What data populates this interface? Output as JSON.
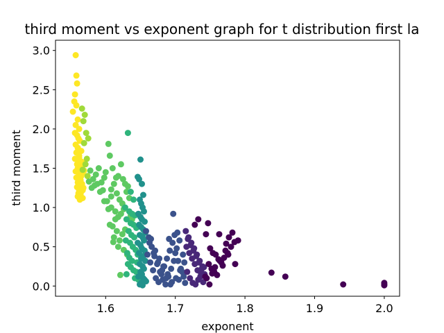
{
  "chart_data": {
    "type": "scatter",
    "title": "third moment vs exponent graph for t distribution first la",
    "xlabel": "exponent",
    "ylabel": "third moment",
    "xlim": [
      1.528,
      2.022
    ],
    "ylim": [
      -0.13,
      3.13
    ],
    "xticks": [
      1.6,
      1.7,
      1.8,
      1.9,
      2.0
    ],
    "xtick_labels": [
      "1.6",
      "1.7",
      "1.8",
      "1.9",
      "2.0"
    ],
    "yticks": [
      0.0,
      0.5,
      1.0,
      1.5,
      2.0,
      2.5,
      3.0
    ],
    "ytick_labels": [
      "0.0",
      "0.5",
      "1.0",
      "1.5",
      "2.0",
      "2.5",
      "3.0"
    ],
    "grid": false,
    "colormap": "viridis",
    "color_encoding": "points colored by viridis colormap: yellow at low exponent, dark purple at high exponent",
    "colors": {
      "yellow": "#fde725",
      "green": "#5ec962",
      "teal": "#21918c",
      "blue": "#3b528b",
      "purple": "#440154"
    },
    "series": [
      {
        "color": "#fde725",
        "x": [
          1.557,
          1.558,
          1.559,
          1.556,
          1.553,
          1.555,
          1.558,
          1.56,
          1.557,
          1.562,
          1.556,
          1.559,
          1.561,
          1.563,
          1.557,
          1.56,
          1.565,
          1.558,
          1.562,
          1.556,
          1.561,
          1.564,
          1.559,
          1.566,
          1.56,
          1.563,
          1.557,
          1.567,
          1.562,
          1.565,
          1.558,
          1.561,
          1.564,
          1.56,
          1.566,
          1.563,
          1.559,
          1.568,
          1.562,
          1.565,
          1.561,
          1.564,
          1.56,
          1.567,
          1.563,
          1.569,
          1.566,
          1.562,
          1.564,
          1.567
        ],
        "y": [
          2.94,
          2.68,
          2.58,
          2.44,
          2.22,
          2.35,
          2.3,
          2.12,
          2.05,
          2.0,
          1.95,
          1.92,
          1.88,
          1.85,
          1.8,
          1.76,
          1.72,
          1.7,
          1.66,
          1.62,
          1.6,
          1.57,
          1.55,
          1.52,
          1.5,
          1.48,
          1.46,
          1.44,
          1.42,
          1.4,
          1.38,
          1.36,
          1.34,
          1.32,
          1.3,
          1.28,
          1.26,
          1.25,
          1.22,
          1.2,
          1.18,
          1.16,
          1.14,
          1.12,
          1.1,
          1.47,
          1.58,
          1.63,
          1.35,
          1.22
        ]
      },
      {
        "color": "#a0da39",
        "x": [
          1.566,
          1.57,
          1.568,
          1.572,
          1.575,
          1.569,
          1.573,
          1.571,
          1.567,
          1.574
        ],
        "y": [
          2.26,
          2.18,
          2.1,
          1.95,
          1.88,
          1.82,
          1.62,
          1.55,
          1.48,
          1.4
        ]
      },
      {
        "color": "#5ec962",
        "x": [
          1.578,
          1.582,
          1.586,
          1.59,
          1.594,
          1.598,
          1.604,
          1.606,
          1.61,
          1.618,
          1.622,
          1.625,
          1.628,
          1.632,
          1.58,
          1.588,
          1.596,
          1.6,
          1.612,
          1.616,
          1.62,
          1.624,
          1.63,
          1.634,
          1.584,
          1.592,
          1.602,
          1.608,
          1.614,
          1.626,
          1.636,
          1.638,
          1.576,
          1.598,
          1.608,
          1.618,
          1.606,
          1.614,
          1.622,
          1.61,
          1.616,
          1.624,
          1.612,
          1.62,
          1.628,
          1.604,
          1.611,
          1.618,
          1.626,
          1.631,
          1.621,
          1.608,
          1.615
        ],
        "y": [
          1.47,
          1.36,
          1.42,
          1.5,
          1.32,
          1.38,
          1.81,
          1.66,
          1.5,
          1.4,
          1.55,
          1.36,
          1.3,
          1.27,
          1.25,
          1.3,
          1.22,
          1.45,
          1.3,
          1.18,
          1.1,
          1.05,
          1.2,
          1.12,
          1.28,
          1.2,
          1.08,
          1.0,
          0.95,
          0.98,
          0.9,
          0.85,
          1.33,
          1.08,
          1.14,
          0.88,
          0.78,
          0.85,
          0.92,
          0.76,
          0.7,
          0.66,
          0.62,
          0.58,
          0.72,
          0.98,
          0.56,
          0.5,
          0.46,
          0.4,
          0.14,
          1.23,
          1.38
        ]
      },
      {
        "color": "#2fb47c",
        "x": [
          1.632,
          1.636,
          1.64,
          1.628,
          1.634,
          1.638,
          1.642,
          1.63,
          1.636,
          1.64,
          1.644,
          1.633,
          1.637,
          1.641,
          1.629,
          1.635,
          1.639,
          1.643,
          1.631,
          1.646,
          1.634,
          1.638,
          1.645,
          1.632,
          1.636,
          1.64,
          1.644,
          1.63,
          1.642,
          1.647
        ],
        "y": [
          1.95,
          1.2,
          1.1,
          1.0,
          0.95,
          0.92,
          0.9,
          0.85,
          0.8,
          0.78,
          0.74,
          0.7,
          0.65,
          0.62,
          0.58,
          0.55,
          0.5,
          0.46,
          0.42,
          0.4,
          0.36,
          0.32,
          0.3,
          0.28,
          0.24,
          0.2,
          0.18,
          0.15,
          0.1,
          0.08
        ]
      },
      {
        "color": "#21918c",
        "x": [
          1.65,
          1.646,
          1.648,
          1.652,
          1.654,
          1.649,
          1.651,
          1.653,
          1.655,
          1.647,
          1.65,
          1.652,
          1.656,
          1.648,
          1.651,
          1.654,
          1.657,
          1.649,
          1.653,
          1.655,
          1.646,
          1.65,
          1.652,
          1.656,
          1.648,
          1.654,
          1.651,
          1.657,
          1.649,
          1.653,
          1.655,
          1.65,
          1.652,
          1.647,
          1.654,
          1.656,
          1.658,
          1.651,
          1.649,
          1.653
        ],
        "y": [
          1.61,
          1.39,
          1.36,
          1.3,
          1.16,
          1.1,
          1.05,
          1.0,
          0.95,
          0.92,
          0.88,
          0.85,
          0.82,
          0.78,
          0.75,
          0.72,
          0.68,
          0.65,
          0.62,
          0.58,
          0.55,
          0.52,
          0.48,
          0.45,
          0.42,
          0.38,
          0.35,
          0.32,
          0.28,
          0.25,
          0.22,
          0.18,
          0.15,
          0.12,
          0.1,
          0.08,
          0.06,
          0.04,
          0.02,
          0.01
        ]
      },
      {
        "color": "#3b528b",
        "x": [
          1.66,
          1.664,
          1.668,
          1.672,
          1.676,
          1.68,
          1.684,
          1.688,
          1.692,
          1.696,
          1.7,
          1.704,
          1.708,
          1.712,
          1.662,
          1.666,
          1.67,
          1.674,
          1.678,
          1.682,
          1.686,
          1.69,
          1.694,
          1.698,
          1.702,
          1.706,
          1.71,
          1.714,
          1.658,
          1.665,
          1.671,
          1.677,
          1.683,
          1.689,
          1.695,
          1.701,
          1.707,
          1.713,
          1.663,
          1.669,
          1.675,
          1.681,
          1.687,
          1.693,
          1.699,
          1.705,
          1.711,
          1.697,
          1.703,
          1.691
        ],
        "y": [
          0.4,
          0.3,
          0.2,
          0.1,
          0.05,
          0.15,
          0.25,
          0.35,
          0.45,
          0.55,
          0.42,
          0.32,
          0.22,
          0.12,
          0.62,
          0.5,
          0.38,
          0.28,
          0.18,
          0.08,
          0.02,
          0.12,
          0.22,
          0.32,
          0.48,
          0.58,
          0.18,
          0.04,
          0.7,
          0.6,
          0.45,
          0.35,
          0.25,
          0.15,
          0.05,
          0.1,
          0.2,
          0.3,
          0.55,
          0.42,
          0.3,
          0.2,
          0.1,
          0.02,
          0.65,
          0.08,
          0.4,
          0.92,
          0.68,
          0.6
        ]
      },
      {
        "color": "#482878",
        "x": [
          1.716,
          1.72,
          1.724,
          1.728,
          1.732,
          1.736,
          1.74,
          1.718,
          1.722,
          1.726,
          1.73,
          1.734,
          1.738,
          1.742,
          1.715,
          1.719,
          1.723,
          1.727,
          1.731,
          1.735,
          1.739,
          1.717,
          1.721,
          1.725,
          1.729,
          1.733,
          1.737,
          1.741
        ],
        "y": [
          0.5,
          0.42,
          0.35,
          0.28,
          0.2,
          0.12,
          0.05,
          0.6,
          0.52,
          0.45,
          0.38,
          0.3,
          0.22,
          0.15,
          0.7,
          0.62,
          0.55,
          0.48,
          0.4,
          0.32,
          0.25,
          0.18,
          0.1,
          0.04,
          0.02,
          0.08,
          0.16,
          0.24
        ]
      },
      {
        "color": "#440154",
        "x": [
          1.733,
          1.728,
          1.747,
          1.744,
          1.75,
          1.754,
          1.758,
          1.762,
          1.766,
          1.77,
          1.775,
          1.78,
          1.785,
          1.79,
          1.748,
          1.752,
          1.756,
          1.76,
          1.764,
          1.768,
          1.772,
          1.776,
          1.782,
          1.786,
          1.745,
          1.749,
          1.753,
          1.757,
          1.838,
          1.858,
          1.941,
          2.0,
          2.0,
          2.0,
          1.763,
          1.773,
          1.777,
          1.743
        ],
        "y": [
          0.85,
          0.78,
          0.8,
          0.66,
          0.48,
          0.42,
          0.4,
          0.34,
          0.3,
          0.36,
          0.42,
          0.5,
          0.56,
          0.58,
          0.28,
          0.22,
          0.18,
          0.14,
          0.32,
          0.26,
          0.45,
          0.4,
          0.68,
          0.28,
          0.1,
          0.02,
          0.16,
          0.24,
          0.17,
          0.12,
          0.02,
          0.01,
          0.04,
          0.02,
          0.66,
          0.54,
          0.62,
          0.12
        ]
      }
    ]
  }
}
